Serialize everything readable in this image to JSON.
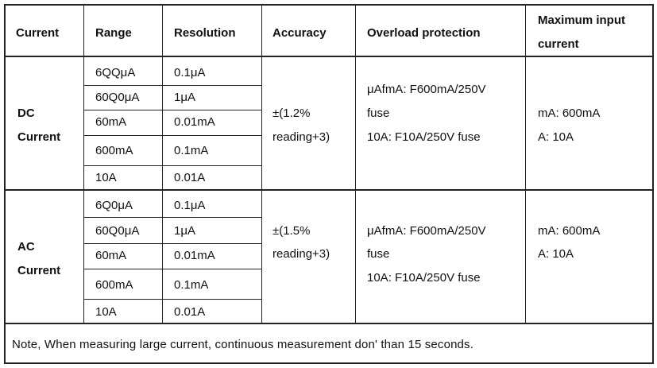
{
  "headers": [
    "Current",
    "Range",
    "Resolution",
    "Accuracy",
    "Overload protection",
    "Maximum input",
    "current"
  ],
  "dc": {
    "label_line1": "DC",
    "label_line2": "Current",
    "rows": [
      {
        "range": "6QQμA",
        "resolution": "0.1μA"
      },
      {
        "range": "60Q0μA",
        "resolution": "1μA"
      },
      {
        "range": "60mA",
        "resolution": "0.01mA"
      },
      {
        "range": "600mA",
        "resolution": "0.1mA"
      },
      {
        "range": "10A",
        "resolution": "0.01A"
      }
    ],
    "accuracy_line1": "±(1.2%",
    "accuracy_line2": "reading+3)",
    "overload_line1": "μAfmA: F600mA/250V",
    "overload_line2": "fuse",
    "overload_line3": "10A: F10A/250V  fuse",
    "max_line1": "mA: 600mA",
    "max_line2": "A: 10A"
  },
  "ac": {
    "label_line1": "AC",
    "label_line2": "Current",
    "rows": [
      {
        "range": "6Q0μA",
        "resolution": "0.1μA"
      },
      {
        "range": "60Q0μA",
        "resolution": "1μA"
      },
      {
        "range": "60mA",
        "resolution": "0.01mA"
      },
      {
        "range": "600mA",
        "resolution": "0.1mA"
      },
      {
        "range": "10A",
        "resolution": "0.01A"
      }
    ],
    "accuracy_line1": "±(1.5%",
    "accuracy_line2": "reading+3)",
    "overload_line1": "μAfmA: F600mA/250V",
    "overload_line2": "fuse",
    "overload_line3": "10A: F10A/250V  fuse",
    "max_line1": "mA: 600mA",
    "max_line2": "A: 10A"
  },
  "note": "Note,  When measuring large current, continuous measurement don' than 15 seconds."
}
